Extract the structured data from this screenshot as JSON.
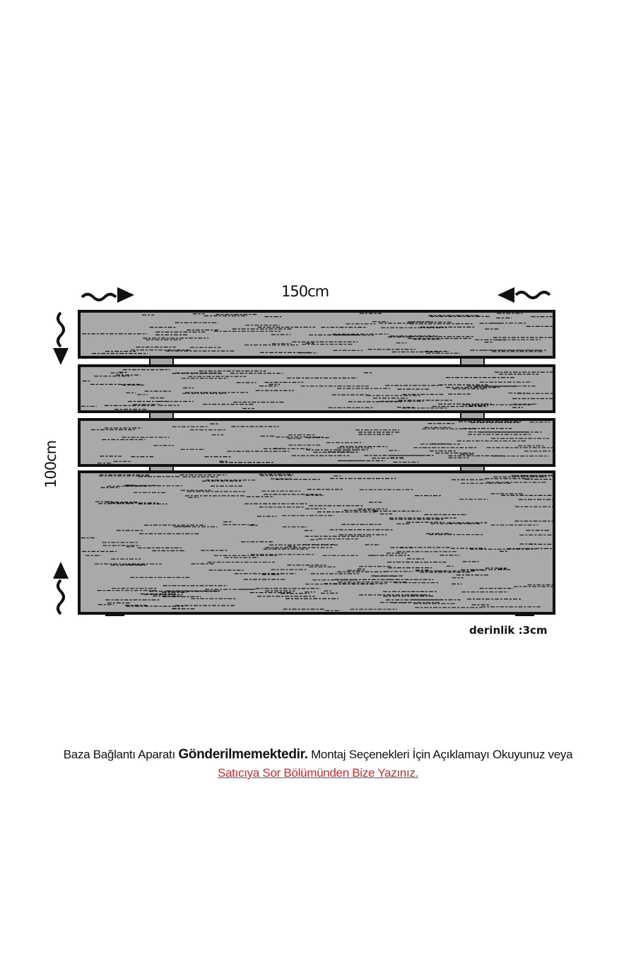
{
  "dimensions": {
    "width": "150cm",
    "height": "100cm",
    "depth": "derinlik :3cm"
  },
  "note": {
    "part1": "Baza Bağlantı Aparatı ",
    "bold": "Gönderilmemektedir.",
    "part2": " Montaj Seçenekleri İçin Açıklamayı Okuyunuz veya",
    "link": "Satıcıya Sor Bölümünden Bize Yazınız. "
  },
  "colors": {
    "wood": "#a9a9a9",
    "outline": "#111111",
    "link": "#e0262a"
  }
}
